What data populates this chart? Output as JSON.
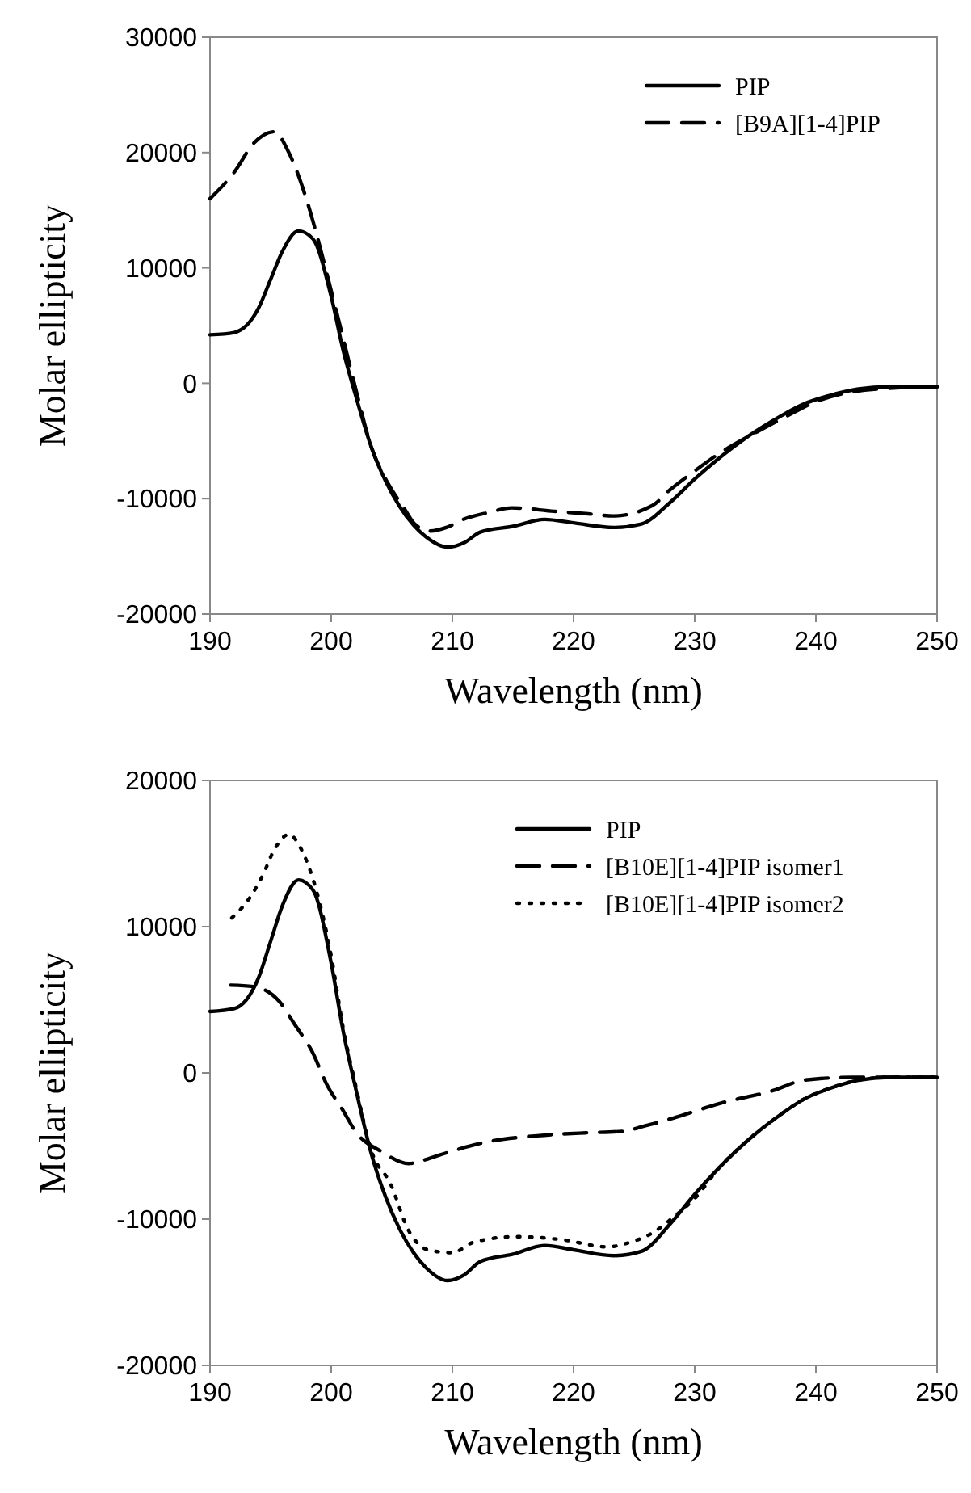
{
  "chart_data": [
    {
      "type": "line",
      "xlabel": "Wavelength (nm)",
      "ylabel": "Molar ellipticity",
      "xlim": [
        190,
        250
      ],
      "xticks": [
        190,
        200,
        210,
        220,
        230,
        240,
        250
      ],
      "ylim": [
        -20000,
        30000
      ],
      "yticks": [
        -20000,
        -10000,
        0,
        10000,
        20000,
        30000
      ],
      "legend": "top right",
      "series": [
        {
          "name": "PIP",
          "color": "#000000",
          "line_style": "solid",
          "x": [
            190,
            192,
            194,
            195,
            196,
            197.3,
            198.5,
            200,
            201,
            202,
            203.3,
            204.5,
            205.6,
            206.8,
            207.8,
            209.6,
            211,
            212.3,
            215,
            217.6,
            220,
            223.3,
            225.6,
            228,
            230,
            232,
            234.4,
            237,
            239,
            241,
            243.5,
            246,
            250
          ],
          "values": [
            4200,
            4400,
            6500,
            9000,
            11500,
            13200,
            12500,
            7500,
            2800,
            -1000,
            -5500,
            -8500,
            -10600,
            -12300,
            -13300,
            -14200,
            -13800,
            -12900,
            -12400,
            -11800,
            -12100,
            -12500,
            -12200,
            -10300,
            -8300,
            -6500,
            -4600,
            -2900,
            -1800,
            -1100,
            -500,
            -300,
            -300
          ]
        },
        {
          "name": "[B9A][1-4]PIP",
          "color": "#000000",
          "line_style": "dashed",
          "x": [
            190,
            192,
            193.6,
            195.3,
            196.5,
            198,
            198.9,
            200,
            200.7,
            202,
            203.3,
            204.7,
            206,
            206.9,
            208.2,
            209.5,
            210.9,
            213,
            214.9,
            218.4,
            221,
            223.3,
            226.5,
            228,
            230,
            232,
            235,
            237.5,
            240,
            245,
            250
          ],
          "values": [
            16000,
            18300,
            20800,
            21800,
            20000,
            15800,
            12500,
            8000,
            5100,
            -400,
            -5500,
            -8700,
            -10800,
            -12200,
            -12800,
            -12500,
            -11800,
            -11200,
            -10800,
            -11100,
            -11300,
            -11500,
            -10600,
            -9200,
            -7600,
            -6100,
            -4300,
            -2900,
            -1600,
            -500,
            -300
          ]
        }
      ]
    },
    {
      "type": "line",
      "xlabel": "Wavelength (nm)",
      "ylabel": "Molar ellipticity",
      "xlim": [
        190,
        250
      ],
      "xticks": [
        190,
        200,
        210,
        220,
        230,
        240,
        250
      ],
      "ylim": [
        -20000,
        20000
      ],
      "yticks": [
        -20000,
        -10000,
        0,
        10000,
        20000
      ],
      "legend": "top right",
      "series": [
        {
          "name": "PIP",
          "color": "#000000",
          "line_style": "solid",
          "x": [
            190,
            192,
            194,
            195,
            196,
            197.3,
            198.5,
            200,
            201,
            202,
            203.3,
            204.5,
            205.6,
            206.8,
            207.8,
            209.6,
            211,
            212.3,
            215,
            217.6,
            220,
            223.3,
            225.6,
            228,
            230,
            232,
            234.4,
            237,
            239,
            241,
            243.5,
            246,
            250
          ],
          "values": [
            4200,
            4400,
            6500,
            9000,
            11500,
            13200,
            12500,
            7500,
            2800,
            -1000,
            -5500,
            -8500,
            -10600,
            -12300,
            -13300,
            -14200,
            -13800,
            -12900,
            -12400,
            -11800,
            -12100,
            -12500,
            -12200,
            -10300,
            -8300,
            -6500,
            -4600,
            -2900,
            -1800,
            -1100,
            -500,
            -300,
            -300
          ]
        },
        {
          "name": "[B10E][1-4]PIP isomer1",
          "color": "#000000",
          "line_style": "dashed",
          "x": [
            191.7,
            193.6,
            195.7,
            197,
            198.4,
            199.7,
            201,
            202,
            204.2,
            206.4,
            207.5,
            209,
            213,
            217,
            221,
            224,
            226,
            228.2,
            232,
            236.5,
            239,
            243,
            246,
            250
          ],
          "values": [
            6000,
            5900,
            4900,
            3300,
            1500,
            -900,
            -2600,
            -4000,
            -5400,
            -6200,
            -6000,
            -5600,
            -4700,
            -4300,
            -4100,
            -4000,
            -3600,
            -3100,
            -2100,
            -1200,
            -500,
            -300,
            -300,
            -300
          ]
        },
        {
          "name": "[B10E][1-4]PIP isomer2",
          "color": "#000000",
          "line_style": "dotted",
          "x": [
            191.8,
            193.3,
            194.4,
            195.2,
            196.5,
            197.7,
            198.4,
            200,
            201,
            202,
            203.3,
            204.9,
            206.4,
            208,
            210,
            211.7,
            215.2,
            219,
            222.8,
            224.6,
            226.4,
            228.2,
            230.2,
            232,
            234.4,
            237,
            239,
            241,
            243.5,
            246,
            250
          ],
          "values": [
            10600,
            12000,
            13600,
            15100,
            16300,
            15000,
            13500,
            8000,
            3000,
            -800,
            -5300,
            -7600,
            -10800,
            -12100,
            -12300,
            -11600,
            -11200,
            -11400,
            -11900,
            -11600,
            -11000,
            -9900,
            -8400,
            -6500,
            -4600,
            -2900,
            -1800,
            -1100,
            -500,
            -300,
            -300
          ]
        }
      ]
    }
  ]
}
